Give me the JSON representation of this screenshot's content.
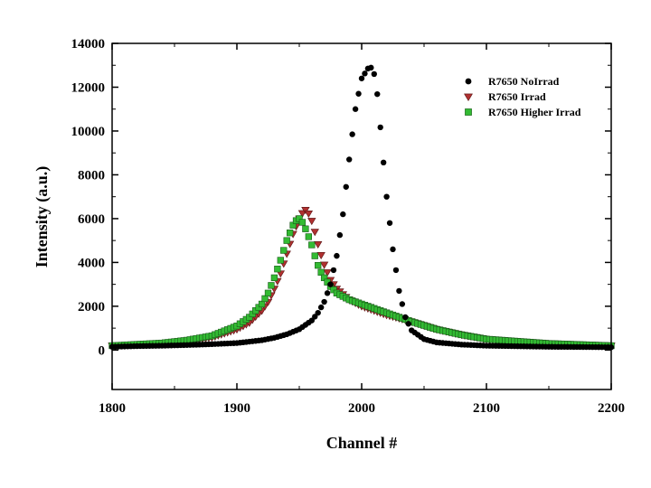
{
  "chart_data": {
    "type": "scatter",
    "xlabel": "Channel #",
    "ylabel": "Intensity (a.u.)",
    "xlim": [
      1800,
      2200
    ],
    "ylim": [
      -1800,
      14000
    ],
    "xticks": [
      1800,
      1900,
      2000,
      2100,
      2200
    ],
    "yticks": [
      0,
      2000,
      4000,
      6000,
      8000,
      10000,
      12000,
      14000
    ],
    "grid": false,
    "legend_position": "top-right",
    "series": [
      {
        "name": "R7650 NoIrrad",
        "marker": "circle",
        "color": "#000000",
        "x": [
          1800,
          1820,
          1840,
          1860,
          1880,
          1900,
          1920,
          1930,
          1940,
          1950,
          1960,
          1965,
          1970,
          1975,
          1980,
          1985,
          1990,
          1995,
          2000,
          2005,
          2008,
          2010,
          2013,
          2016,
          2020,
          2025,
          2030,
          2035,
          2040,
          2050,
          2060,
          2080,
          2100,
          2150,
          2200
        ],
        "y": [
          150,
          180,
          200,
          230,
          270,
          320,
          450,
          560,
          720,
          950,
          1350,
          1700,
          2200,
          3000,
          4300,
          6200,
          8700,
          11000,
          12400,
          12850,
          12900,
          12600,
          11500,
          9500,
          7000,
          4600,
          2700,
          1500,
          900,
          500,
          350,
          250,
          200,
          150,
          130
        ]
      },
      {
        "name": "R7650 Irrad",
        "marker": "triangle-down",
        "color": "#b03030",
        "x": [
          1800,
          1820,
          1840,
          1860,
          1880,
          1900,
          1910,
          1920,
          1925,
          1930,
          1935,
          1940,
          1945,
          1950,
          1953,
          1955,
          1958,
          1960,
          1963,
          1966,
          1970,
          1975,
          1980,
          1990,
          2000,
          2020,
          2040,
          2060,
          2080,
          2100,
          2150,
          2200
        ],
        "y": [
          200,
          260,
          320,
          420,
          580,
          950,
          1250,
          1800,
          2200,
          2800,
          3500,
          4400,
          5300,
          6000,
          6300,
          6400,
          6200,
          5900,
          5300,
          4600,
          3900,
          3200,
          2800,
          2300,
          2000,
          1600,
          1300,
          950,
          700,
          500,
          300,
          200
        ]
      },
      {
        "name": "R7650 Higher Irrad",
        "marker": "square",
        "color": "#33bb33",
        "x": [
          1800,
          1820,
          1840,
          1860,
          1880,
          1900,
          1910,
          1920,
          1925,
          1930,
          1935,
          1940,
          1945,
          1948,
          1950,
          1953,
          1956,
          1960,
          1963,
          1966,
          1970,
          1975,
          1980,
          1990,
          2000,
          2020,
          2040,
          2060,
          2080,
          2100,
          2150,
          2200
        ],
        "y": [
          200,
          260,
          320,
          450,
          650,
          1100,
          1500,
          2100,
          2600,
          3300,
          4100,
          5000,
          5700,
          5950,
          6000,
          5800,
          5400,
          4800,
          4200,
          3700,
          3300,
          2900,
          2600,
          2300,
          2100,
          1700,
          1300,
          950,
          700,
          500,
          300,
          200
        ]
      }
    ]
  }
}
